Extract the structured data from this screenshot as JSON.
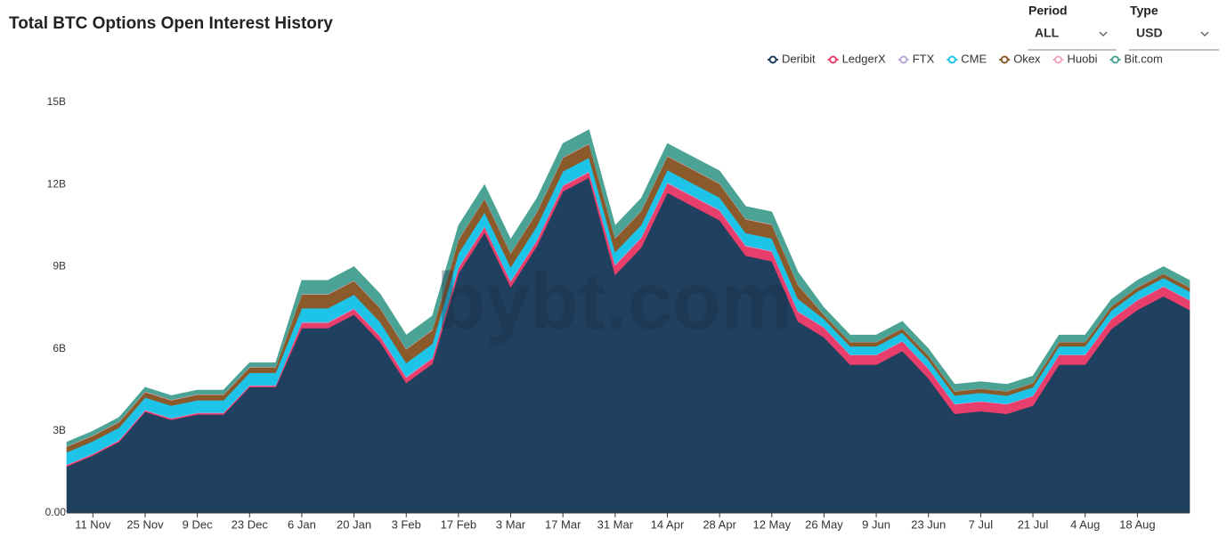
{
  "header": {
    "title": "Total BTC Options Open Interest History",
    "period": {
      "label": "Period",
      "value": "ALL"
    },
    "type": {
      "label": "Type",
      "value": "USD"
    }
  },
  "watermark": "bybt.com",
  "chart_data": {
    "type": "stacked_area",
    "categories": [
      null,
      "11 Nov",
      null,
      "25 Nov",
      null,
      "9 Dec",
      null,
      "23 Dec",
      null,
      "6 Jan",
      null,
      "20 Jan",
      null,
      "3 Feb",
      null,
      "17 Feb",
      null,
      "3 Mar",
      null,
      "17 Mar",
      null,
      "31 Mar",
      null,
      "14 Apr",
      null,
      "28 Apr",
      null,
      "12 May",
      null,
      "26 May",
      null,
      "9 Jun",
      null,
      "23 Jun",
      null,
      "7 Jul",
      null,
      "21 Jul",
      null,
      "4 Aug",
      null,
      "18 Aug",
      null,
      null
    ],
    "series": [
      {
        "name": "Deribit",
        "color": "#20405f",
        "values": [
          1.7,
          2.1,
          2.6,
          3.7,
          3.4,
          3.6,
          3.6,
          4.6,
          4.6,
          6.75,
          6.75,
          7.25,
          6.25,
          4.75,
          5.45,
          8.75,
          10.25,
          8.25,
          9.75,
          11.75,
          12.25,
          8.7,
          9.7,
          11.7,
          11.2,
          10.7,
          9.4,
          9.2,
          7.0,
          6.42,
          5.42,
          5.42,
          5.92,
          4.92,
          3.62,
          3.72,
          3.62,
          3.92,
          5.42,
          5.42,
          6.72,
          7.42,
          7.92,
          7.42
        ]
      },
      {
        "name": "LedgerX",
        "color": "#e83e6c",
        "values": [
          0.05,
          0.05,
          0.05,
          0.05,
          0.05,
          0.05,
          0.05,
          0.05,
          0.05,
          0.2,
          0.2,
          0.2,
          0.2,
          0.2,
          0.2,
          0.2,
          0.2,
          0.2,
          0.2,
          0.2,
          0.2,
          0.35,
          0.35,
          0.35,
          0.35,
          0.35,
          0.35,
          0.35,
          0.35,
          0.35,
          0.35,
          0.35,
          0.35,
          0.35,
          0.35,
          0.35,
          0.35,
          0.35,
          0.35,
          0.35,
          0.35,
          0.35,
          0.35,
          0.35
        ]
      },
      {
        "name": "FTX",
        "color": "#b8a9d9",
        "values": [
          0.02,
          0.02,
          0.02,
          0.02,
          0.02,
          0.02,
          0.02,
          0.02,
          0.02,
          0.03,
          0.03,
          0.03,
          0.03,
          0.03,
          0.03,
          0.03,
          0.03,
          0.03,
          0.03,
          0.03,
          0.03,
          0.03,
          0.03,
          0.03,
          0.03,
          0.03,
          0.03,
          0.03,
          0.03,
          0.02,
          0.02,
          0.02,
          0.02,
          0.02,
          0.02,
          0.02,
          0.02,
          0.02,
          0.02,
          0.02,
          0.02,
          0.02,
          0.02,
          0.02
        ]
      },
      {
        "name": "CME",
        "color": "#1ec4e8",
        "values": [
          0.45,
          0.45,
          0.45,
          0.45,
          0.45,
          0.45,
          0.45,
          0.45,
          0.45,
          0.5,
          0.5,
          0.5,
          0.5,
          0.5,
          0.5,
          0.5,
          0.5,
          0.5,
          0.5,
          0.5,
          0.5,
          0.45,
          0.45,
          0.45,
          0.45,
          0.45,
          0.45,
          0.45,
          0.45,
          0.3,
          0.3,
          0.3,
          0.3,
          0.3,
          0.3,
          0.3,
          0.3,
          0.3,
          0.3,
          0.3,
          0.3,
          0.3,
          0.3,
          0.3
        ]
      },
      {
        "name": "Okex",
        "color": "#8b5a2b",
        "values": [
          0.2,
          0.2,
          0.2,
          0.2,
          0.2,
          0.2,
          0.2,
          0.2,
          0.2,
          0.5,
          0.5,
          0.5,
          0.5,
          0.5,
          0.5,
          0.5,
          0.5,
          0.5,
          0.5,
          0.5,
          0.5,
          0.5,
          0.5,
          0.5,
          0.5,
          0.5,
          0.5,
          0.5,
          0.5,
          0.15,
          0.15,
          0.15,
          0.15,
          0.15,
          0.15,
          0.15,
          0.15,
          0.15,
          0.15,
          0.15,
          0.15,
          0.15,
          0.15,
          0.15
        ]
      },
      {
        "name": "Huobi",
        "color": "#f1a9c0",
        "values": [
          0.02,
          0.02,
          0.02,
          0.02,
          0.02,
          0.02,
          0.02,
          0.02,
          0.02,
          0.02,
          0.02,
          0.02,
          0.02,
          0.02,
          0.02,
          0.02,
          0.02,
          0.02,
          0.02,
          0.02,
          0.02,
          0.02,
          0.02,
          0.02,
          0.02,
          0.02,
          0.02,
          0.02,
          0.02,
          0.01,
          0.01,
          0.01,
          0.01,
          0.01,
          0.01,
          0.01,
          0.01,
          0.01,
          0.01,
          0.01,
          0.01,
          0.01,
          0.01,
          0.01
        ]
      },
      {
        "name": "Bit.com",
        "color": "#4aa394",
        "values": [
          0.15,
          0.15,
          0.15,
          0.15,
          0.15,
          0.15,
          0.15,
          0.15,
          0.15,
          0.5,
          0.5,
          0.5,
          0.5,
          0.5,
          0.5,
          0.5,
          0.5,
          0.5,
          0.5,
          0.5,
          0.5,
          0.45,
          0.45,
          0.45,
          0.45,
          0.45,
          0.45,
          0.45,
          0.45,
          0.25,
          0.25,
          0.25,
          0.25,
          0.25,
          0.25,
          0.25,
          0.25,
          0.25,
          0.25,
          0.25,
          0.25,
          0.25,
          0.25,
          0.25
        ]
      }
    ],
    "ylim": [
      0,
      15
    ],
    "yticks": [
      {
        "value": 0,
        "label": "0.00"
      },
      {
        "value": 3,
        "label": "3B"
      },
      {
        "value": 6,
        "label": "6B"
      },
      {
        "value": 9,
        "label": "9B"
      },
      {
        "value": 12,
        "label": "12B"
      },
      {
        "value": 15,
        "label": "15B"
      }
    ],
    "legend": "top-right"
  }
}
